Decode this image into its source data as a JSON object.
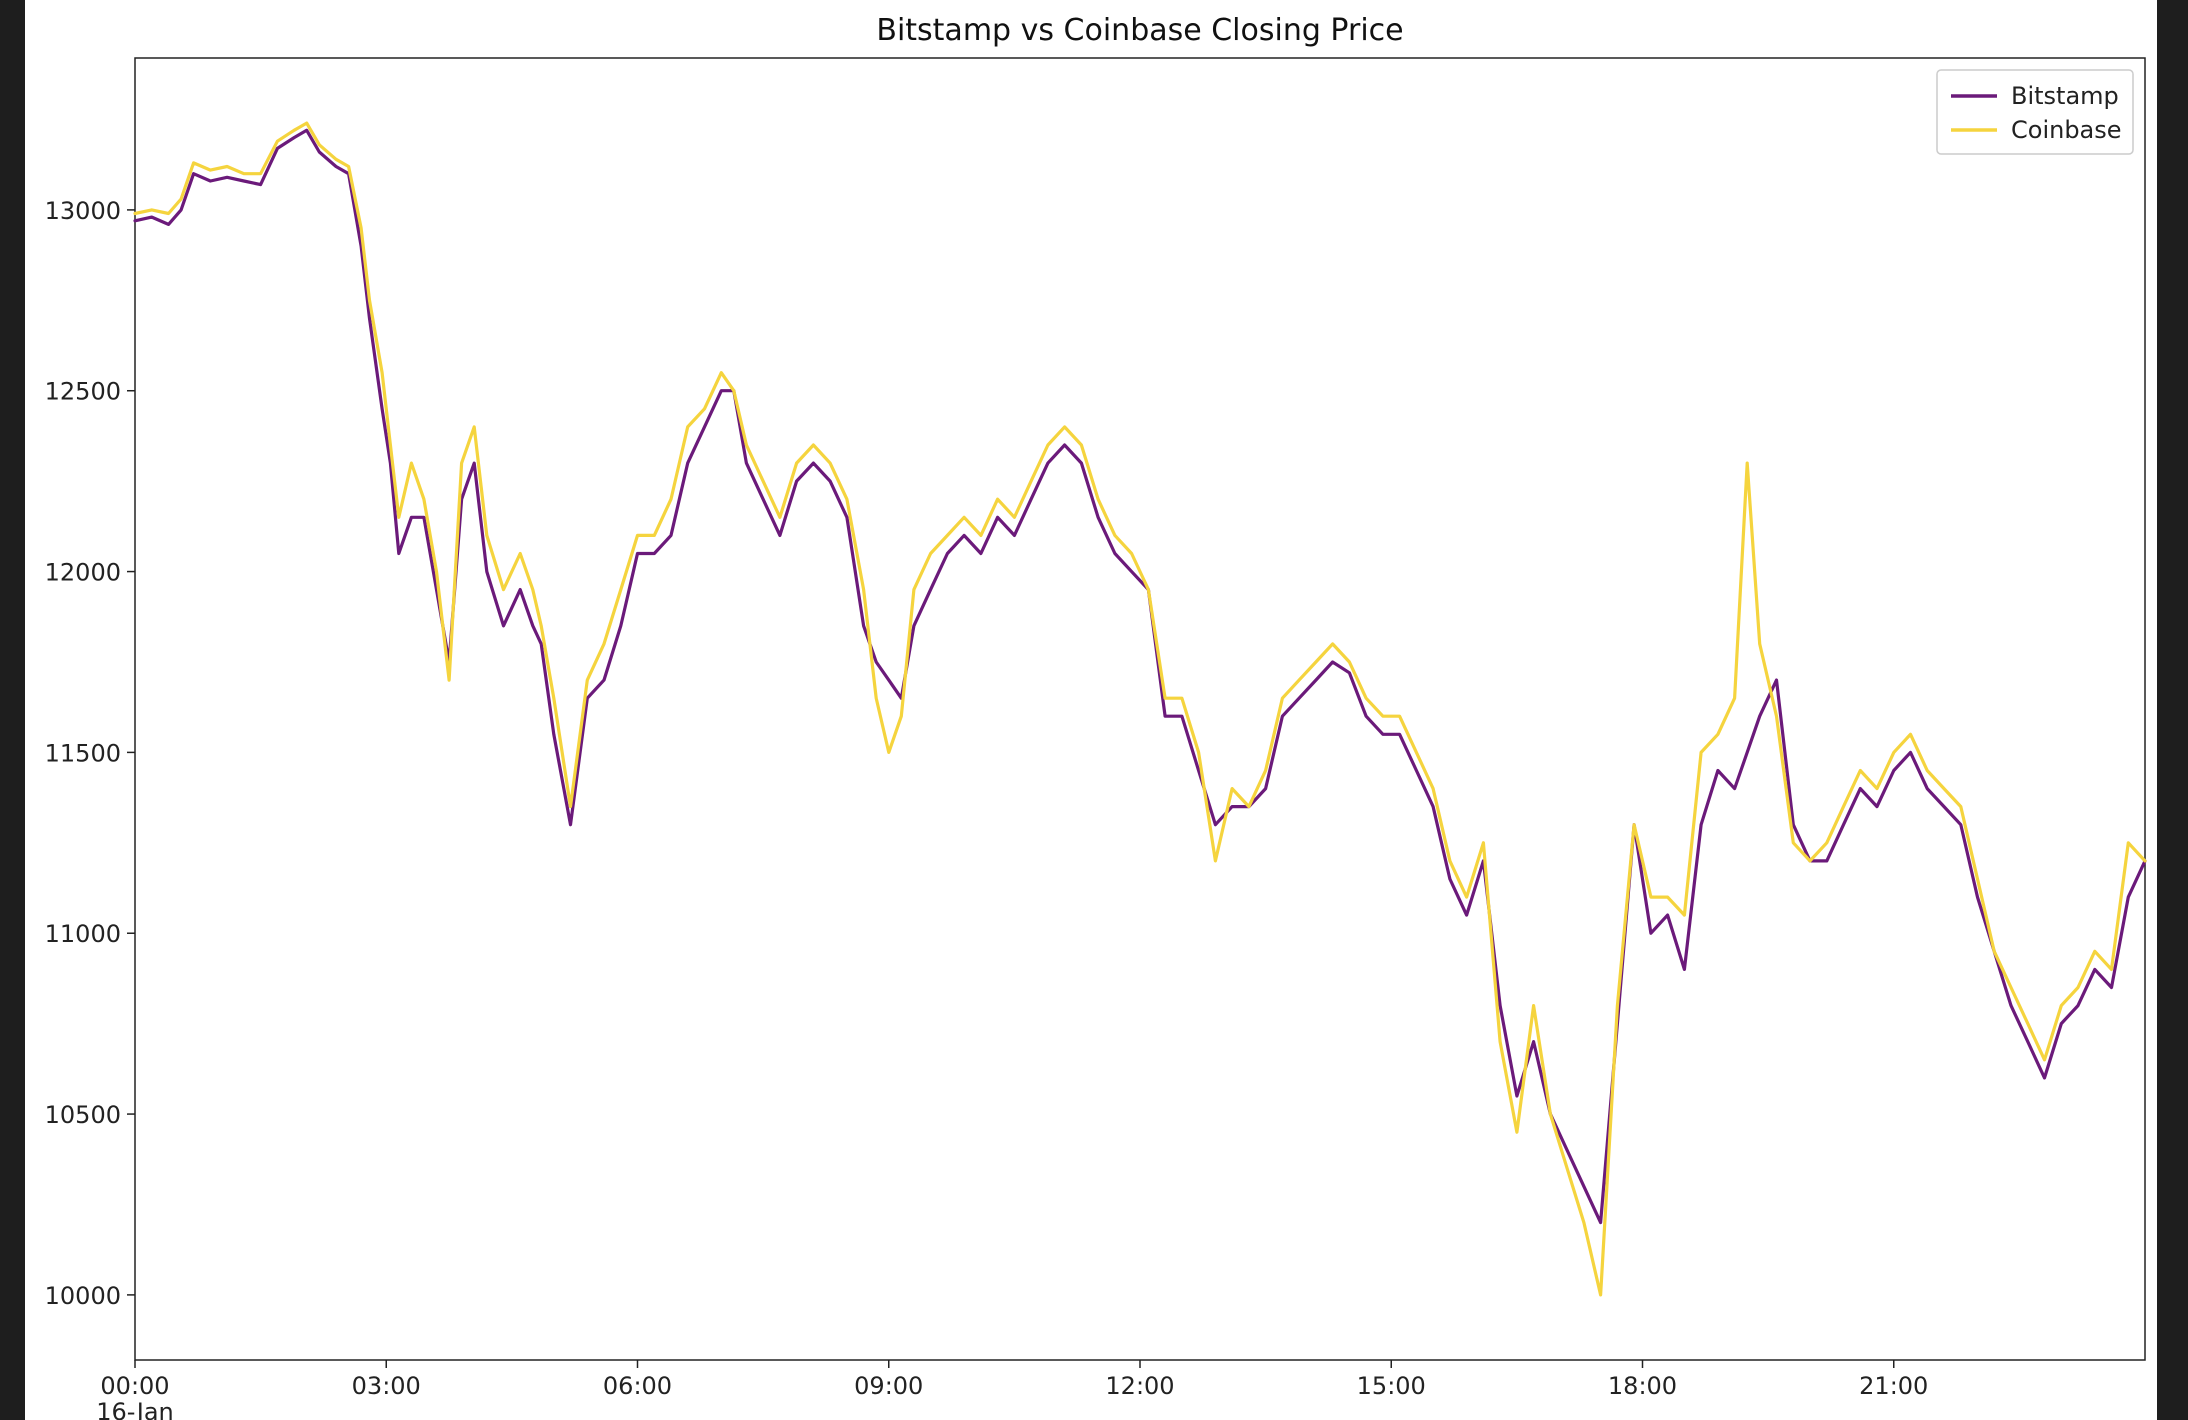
{
  "chart_data": {
    "type": "line",
    "title": "Bitstamp vs Coinbase Closing Price",
    "xlabel": "",
    "ylabel": "",
    "x_ticks": [
      "00:00",
      "03:00",
      "06:00",
      "09:00",
      "12:00",
      "15:00",
      "18:00",
      "21:00"
    ],
    "x_tick_hours": [
      0,
      3,
      6,
      9,
      12,
      15,
      18,
      21
    ],
    "x_sublabel": "16-Jan",
    "xlim_hours": [
      0,
      24
    ],
    "ylim": [
      9820,
      13420
    ],
    "y_ticks": [
      10000,
      10500,
      11000,
      11500,
      12000,
      12500,
      13000
    ],
    "grid": false,
    "legend_position": "top-right",
    "series": [
      {
        "name": "Bitstamp",
        "color": "#6b1a7a",
        "x": [
          0.0,
          0.2,
          0.4,
          0.55,
          0.7,
          0.9,
          1.1,
          1.3,
          1.5,
          1.7,
          1.9,
          2.05,
          2.2,
          2.4,
          2.55,
          2.7,
          2.8,
          2.95,
          3.05,
          3.15,
          3.3,
          3.45,
          3.6,
          3.75,
          3.9,
          4.05,
          4.2,
          4.4,
          4.6,
          4.75,
          4.85,
          5.0,
          5.2,
          5.4,
          5.6,
          5.8,
          6.0,
          6.2,
          6.4,
          6.6,
          6.8,
          7.0,
          7.15,
          7.3,
          7.5,
          7.7,
          7.9,
          8.1,
          8.3,
          8.5,
          8.7,
          8.85,
          9.0,
          9.15,
          9.3,
          9.5,
          9.7,
          9.9,
          10.1,
          10.3,
          10.5,
          10.7,
          10.9,
          11.1,
          11.3,
          11.5,
          11.7,
          11.9,
          12.1,
          12.3,
          12.5,
          12.7,
          12.9,
          13.1,
          13.3,
          13.5,
          13.7,
          13.9,
          14.1,
          14.3,
          14.5,
          14.7,
          14.9,
          15.1,
          15.3,
          15.5,
          15.7,
          15.9,
          16.1,
          16.3,
          16.5,
          16.7,
          16.9,
          17.1,
          17.3,
          17.5,
          17.7,
          17.9,
          18.1,
          18.3,
          18.5,
          18.7,
          18.9,
          19.1,
          19.25,
          19.4,
          19.6,
          19.8,
          20.0,
          20.2,
          20.4,
          20.6,
          20.8,
          21.0,
          21.2,
          21.4,
          21.6,
          21.8,
          22.0,
          22.2,
          22.4,
          22.6,
          22.8,
          23.0,
          23.2,
          23.4,
          23.6,
          23.8,
          24.0
        ],
        "values": [
          12970,
          12980,
          12960,
          13000,
          13100,
          13080,
          13090,
          13080,
          13070,
          13170,
          13200,
          13220,
          13160,
          13120,
          13100,
          12900,
          12700,
          12450,
          12300,
          12050,
          12150,
          12150,
          11950,
          11750,
          12200,
          12300,
          12000,
          11850,
          11950,
          11850,
          11800,
          11550,
          11300,
          11650,
          11700,
          11850,
          12050,
          12050,
          12100,
          12300,
          12400,
          12500,
          12500,
          12300,
          12200,
          12100,
          12250,
          12300,
          12250,
          12150,
          11850,
          11750,
          11700,
          11650,
          11850,
          11950,
          12050,
          12100,
          12050,
          12150,
          12100,
          12200,
          12300,
          12350,
          12300,
          12150,
          12050,
          12000,
          11950,
          11600,
          11600,
          11450,
          11300,
          11350,
          11350,
          11400,
          11600,
          11650,
          11700,
          11750,
          11720,
          11600,
          11550,
          11550,
          11450,
          11350,
          11150,
          11050,
          11200,
          10800,
          10550,
          10700,
          10500,
          10400,
          10300,
          10200,
          10750,
          11300,
          11000,
          11050,
          10900,
          11300,
          11450,
          11400,
          11500,
          11600,
          11700,
          11300,
          11200,
          11200,
          11300,
          11400,
          11350,
          11450,
          11500,
          11400,
          11350,
          11300,
          11100,
          10950,
          10800,
          10700,
          10600,
          10750,
          10800,
          10900,
          10850,
          11100,
          11200
        ]
      },
      {
        "name": "Coinbase",
        "color": "#f5d43e",
        "x": [
          0.0,
          0.2,
          0.4,
          0.55,
          0.7,
          0.9,
          1.1,
          1.3,
          1.5,
          1.7,
          1.9,
          2.05,
          2.2,
          2.4,
          2.55,
          2.7,
          2.8,
          2.95,
          3.05,
          3.15,
          3.3,
          3.45,
          3.6,
          3.75,
          3.9,
          4.05,
          4.2,
          4.4,
          4.6,
          4.75,
          4.85,
          5.0,
          5.2,
          5.4,
          5.6,
          5.8,
          6.0,
          6.2,
          6.4,
          6.6,
          6.8,
          7.0,
          7.15,
          7.3,
          7.5,
          7.7,
          7.9,
          8.1,
          8.3,
          8.5,
          8.7,
          8.85,
          9.0,
          9.15,
          9.3,
          9.5,
          9.7,
          9.9,
          10.1,
          10.3,
          10.5,
          10.7,
          10.9,
          11.1,
          11.3,
          11.5,
          11.7,
          11.9,
          12.1,
          12.3,
          12.5,
          12.7,
          12.9,
          13.1,
          13.3,
          13.5,
          13.7,
          13.9,
          14.1,
          14.3,
          14.5,
          14.7,
          14.9,
          15.1,
          15.3,
          15.5,
          15.7,
          15.9,
          16.1,
          16.3,
          16.5,
          16.7,
          16.9,
          17.1,
          17.3,
          17.5,
          17.7,
          17.9,
          18.1,
          18.3,
          18.5,
          18.7,
          18.9,
          19.1,
          19.25,
          19.4,
          19.6,
          19.8,
          20.0,
          20.2,
          20.4,
          20.6,
          20.8,
          21.0,
          21.2,
          21.4,
          21.6,
          21.8,
          22.0,
          22.2,
          22.4,
          22.6,
          22.8,
          23.0,
          23.2,
          23.4,
          23.6,
          23.8,
          24.0
        ],
        "values": [
          12990,
          13000,
          12990,
          13030,
          13130,
          13110,
          13120,
          13100,
          13100,
          13190,
          13220,
          13240,
          13180,
          13140,
          13120,
          12950,
          12750,
          12550,
          12350,
          12150,
          12300,
          12200,
          12000,
          11700,
          12300,
          12400,
          12100,
          11950,
          12050,
          11950,
          11850,
          11650,
          11350,
          11700,
          11800,
          11950,
          12100,
          12100,
          12200,
          12400,
          12450,
          12550,
          12500,
          12350,
          12250,
          12150,
          12300,
          12350,
          12300,
          12200,
          11950,
          11650,
          11500,
          11600,
          11950,
          12050,
          12100,
          12150,
          12100,
          12200,
          12150,
          12250,
          12350,
          12400,
          12350,
          12200,
          12100,
          12050,
          11950,
          11650,
          11650,
          11500,
          11200,
          11400,
          11350,
          11450,
          11650,
          11700,
          11750,
          11800,
          11750,
          11650,
          11600,
          11600,
          11500,
          11400,
          11200,
          11100,
          11250,
          10700,
          10450,
          10800,
          10500,
          10350,
          10200,
          10000,
          10800,
          11300,
          11100,
          11100,
          11050,
          11500,
          11550,
          11650,
          12300,
          11800,
          11600,
          11250,
          11200,
          11250,
          11350,
          11450,
          11400,
          11500,
          11550,
          11450,
          11400,
          11350,
          11150,
          10950,
          10850,
          10750,
          10650,
          10800,
          10850,
          10950,
          10900,
          11250,
          11200
        ]
      }
    ]
  }
}
